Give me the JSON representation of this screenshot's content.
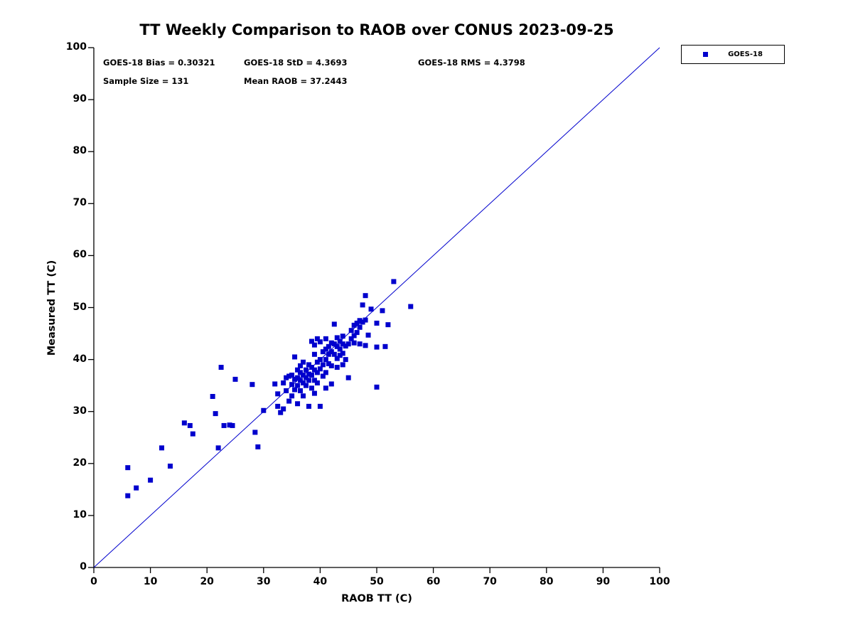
{
  "title": "TT Weekly Comparison to RAOB over CONUS 2023-09-25",
  "stats": {
    "bias": "GOES-18 Bias = 0.30321",
    "std": "GOES-18 StD = 4.3693",
    "rms": "GOES-18 RMS = 4.3798",
    "sample": "Sample Size = 131",
    "mean": "Mean RAOB = 37.2443"
  },
  "legend": {
    "label": "GOES-18",
    "position": "top-right"
  },
  "colors": {
    "marker": "#0000CD",
    "reference_line": "#0000CD",
    "axis": "#000000",
    "text": "#000000"
  },
  "chart_data": {
    "type": "scatter",
    "title": "TT Weekly Comparison to RAOB over CONUS 2023-09-25",
    "xlabel": "RAOB TT (C)",
    "ylabel": "Measured TT (C)",
    "xlim": [
      0,
      100
    ],
    "ylim": [
      0,
      100
    ],
    "xticks": [
      0,
      10,
      20,
      30,
      40,
      50,
      60,
      70,
      80,
      90,
      100
    ],
    "yticks": [
      0,
      10,
      20,
      30,
      40,
      50,
      60,
      70,
      80,
      90,
      100
    ],
    "grid": false,
    "legend_position": "top-right",
    "annotations": [
      "GOES-18 Bias = 0.30321",
      "GOES-18 StD = 4.3693",
      "GOES-18 RMS = 4.3798",
      "Sample Size = 131",
      "Mean RAOB = 37.2443"
    ],
    "reference_line": {
      "from": [
        0,
        0
      ],
      "to": [
        100,
        100
      ],
      "color": "#0000CD"
    },
    "series": [
      {
        "name": "GOES-18",
        "marker": "square",
        "color": "#0000CD",
        "sample_size": 131,
        "points": [
          [
            6,
            19.2
          ],
          [
            6,
            13.8
          ],
          [
            7.5,
            15.3
          ],
          [
            10,
            16.8
          ],
          [
            12,
            23
          ],
          [
            13.5,
            19.5
          ],
          [
            16,
            27.8
          ],
          [
            17,
            27.3
          ],
          [
            17.5,
            25.7
          ],
          [
            21,
            32.9
          ],
          [
            21.5,
            29.6
          ],
          [
            22,
            23
          ],
          [
            22.5,
            38.5
          ],
          [
            23,
            27.3
          ],
          [
            24,
            27.4
          ],
          [
            24.5,
            27.3
          ],
          [
            25,
            36.2
          ],
          [
            28,
            35.2
          ],
          [
            28.5,
            26
          ],
          [
            29,
            23.2
          ],
          [
            30,
            30.2
          ],
          [
            32,
            35.3
          ],
          [
            32.5,
            33.4
          ],
          [
            32.5,
            31
          ],
          [
            33,
            29.8
          ],
          [
            33.5,
            35.5
          ],
          [
            33.5,
            30.5
          ],
          [
            34,
            36.5
          ],
          [
            34,
            34
          ],
          [
            34.5,
            36.8
          ],
          [
            34.5,
            32
          ],
          [
            35,
            37
          ],
          [
            35,
            35.2
          ],
          [
            35,
            33
          ],
          [
            35.5,
            40.5
          ],
          [
            35.5,
            36.2
          ],
          [
            35.5,
            34.2
          ],
          [
            36,
            38
          ],
          [
            36,
            36.5
          ],
          [
            36,
            35
          ],
          [
            36,
            31.5
          ],
          [
            36.5,
            37.5
          ],
          [
            36.5,
            36
          ],
          [
            36.5,
            34
          ],
          [
            37,
            39.5
          ],
          [
            37,
            37
          ],
          [
            37,
            35.5
          ],
          [
            37,
            33
          ],
          [
            37.5,
            38
          ],
          [
            37.5,
            36.5
          ],
          [
            37.5,
            35
          ],
          [
            38,
            39
          ],
          [
            38,
            37.2
          ],
          [
            38,
            36
          ],
          [
            38,
            31
          ],
          [
            38.5,
            43.5
          ],
          [
            38.5,
            38.5
          ],
          [
            38.5,
            37
          ],
          [
            39,
            41
          ],
          [
            39,
            38
          ],
          [
            39,
            36
          ],
          [
            39,
            33.5
          ],
          [
            39.5,
            44
          ],
          [
            39.5,
            39.5
          ],
          [
            39.5,
            37.5
          ],
          [
            39.5,
            35.5
          ],
          [
            40,
            43.4
          ],
          [
            40,
            40
          ],
          [
            40,
            38.2
          ],
          [
            40,
            31
          ],
          [
            40.5,
            41.5
          ],
          [
            40.5,
            39
          ],
          [
            40.5,
            36.8
          ],
          [
            41,
            44
          ],
          [
            41,
            42
          ],
          [
            41,
            40
          ],
          [
            41,
            34.5
          ],
          [
            41.5,
            42.5
          ],
          [
            41.5,
            41
          ],
          [
            41.5,
            39.2
          ],
          [
            42,
            43.2
          ],
          [
            42,
            41.5
          ],
          [
            42,
            38.8
          ],
          [
            42,
            35.3
          ],
          [
            42.5,
            46.8
          ],
          [
            42.5,
            43
          ],
          [
            42.5,
            41
          ],
          [
            43,
            44.2
          ],
          [
            43,
            42.5
          ],
          [
            43,
            40.2
          ],
          [
            43,
            38.5
          ],
          [
            43.5,
            43.5
          ],
          [
            43.5,
            42
          ],
          [
            43.5,
            40.8
          ],
          [
            44,
            44.5
          ],
          [
            44,
            43
          ],
          [
            44,
            41.2
          ],
          [
            44.5,
            42.6
          ],
          [
            44.5,
            40
          ],
          [
            45,
            43
          ],
          [
            45,
            36.5
          ],
          [
            45.5,
            45.6
          ],
          [
            45.5,
            44
          ],
          [
            46,
            46.6
          ],
          [
            46,
            44.6
          ],
          [
            46,
            43.2
          ],
          [
            46.5,
            47
          ],
          [
            46.5,
            45.2
          ],
          [
            47,
            47.5
          ],
          [
            47,
            46.2
          ],
          [
            47,
            43
          ],
          [
            47.5,
            50.5
          ],
          [
            47.5,
            47.2
          ],
          [
            48,
            52.3
          ],
          [
            48,
            47.6
          ],
          [
            48,
            42.7
          ],
          [
            48.5,
            44.7
          ],
          [
            49,
            49.7
          ],
          [
            50,
            47
          ],
          [
            50,
            34.7
          ],
          [
            50,
            42.4
          ],
          [
            51,
            49.4
          ],
          [
            51.5,
            42.5
          ],
          [
            52,
            46.7
          ],
          [
            53,
            55
          ],
          [
            56,
            50.2
          ],
          [
            39,
            42.8
          ],
          [
            41,
            37.5
          ],
          [
            44,
            39
          ],
          [
            38.5,
            34.5
          ],
          [
            36.5,
            38.8
          ]
        ]
      }
    ]
  }
}
